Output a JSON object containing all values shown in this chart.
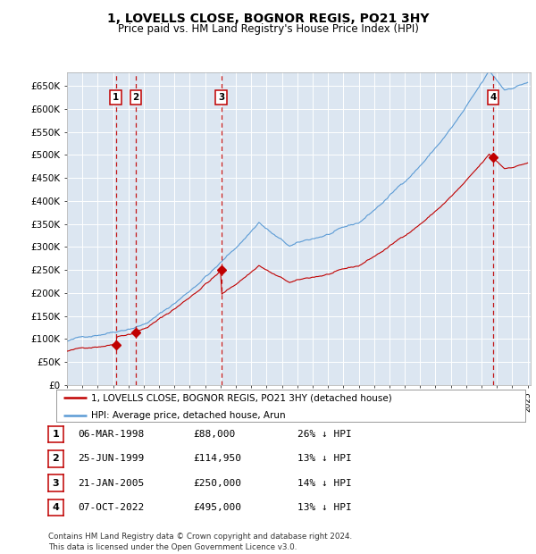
{
  "title": "1, LOVELLS CLOSE, BOGNOR REGIS, PO21 3HY",
  "subtitle": "Price paid vs. HM Land Registry's House Price Index (HPI)",
  "plot_bg_color": "#dce6f1",
  "grid_color": "#ffffff",
  "hpi_color": "#5b9bd5",
  "price_color": "#c00000",
  "ylim_max": 680000,
  "yticks": [
    0,
    50000,
    100000,
    150000,
    200000,
    250000,
    300000,
    350000,
    400000,
    450000,
    500000,
    550000,
    600000,
    650000
  ],
  "xlim_start": 1995.4,
  "xlim_end": 2025.2,
  "transactions": [
    {
      "year": 1998.18,
      "price": 88000,
      "label": "1"
    },
    {
      "year": 1999.48,
      "price": 114950,
      "label": "2"
    },
    {
      "year": 2005.05,
      "price": 250000,
      "label": "3"
    },
    {
      "year": 2022.76,
      "price": 495000,
      "label": "4"
    }
  ],
  "legend_entries": [
    "1, LOVELLS CLOSE, BOGNOR REGIS, PO21 3HY (detached house)",
    "HPI: Average price, detached house, Arun"
  ],
  "footer": "Contains HM Land Registry data © Crown copyright and database right 2024.\nThis data is licensed under the Open Government Licence v3.0.",
  "table_rows": [
    [
      "1",
      "06-MAR-1998",
      "£88,000",
      "26% ↓ HPI"
    ],
    [
      "2",
      "25-JUN-1999",
      "£114,950",
      "13% ↓ HPI"
    ],
    [
      "3",
      "21-JAN-2005",
      "£250,000",
      "14% ↓ HPI"
    ],
    [
      "4",
      "07-OCT-2022",
      "£495,000",
      "13% ↓ HPI"
    ]
  ]
}
